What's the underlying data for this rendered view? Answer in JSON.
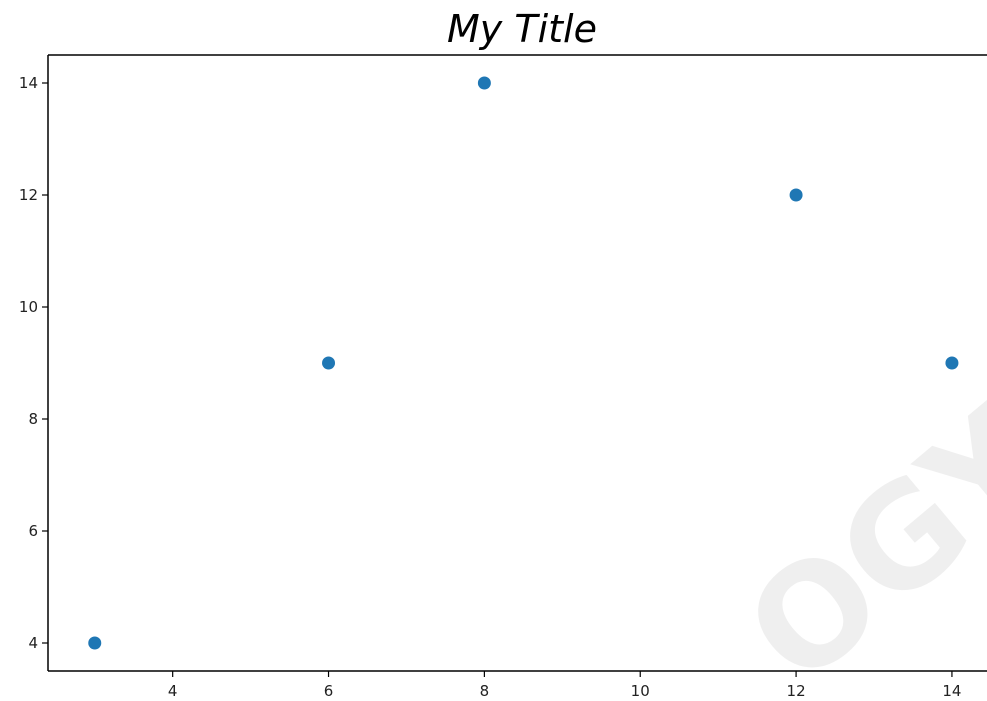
{
  "chart_data": {
    "type": "scatter",
    "title": "My Title",
    "xlabel": "",
    "ylabel": "",
    "x": [
      3,
      6,
      8,
      12,
      14
    ],
    "y": [
      4,
      9,
      14,
      12,
      9
    ],
    "xlim": [
      2.4,
      14.45
    ],
    "ylim": [
      3.5,
      14.5
    ],
    "xticks": [
      4,
      6,
      8,
      10,
      12,
      14
    ],
    "yticks": [
      4,
      6,
      8,
      10,
      12,
      14
    ],
    "marker_color": "#1f77b4",
    "grid": false,
    "legend": null
  },
  "watermark": {
    "text": "OGY.C"
  }
}
